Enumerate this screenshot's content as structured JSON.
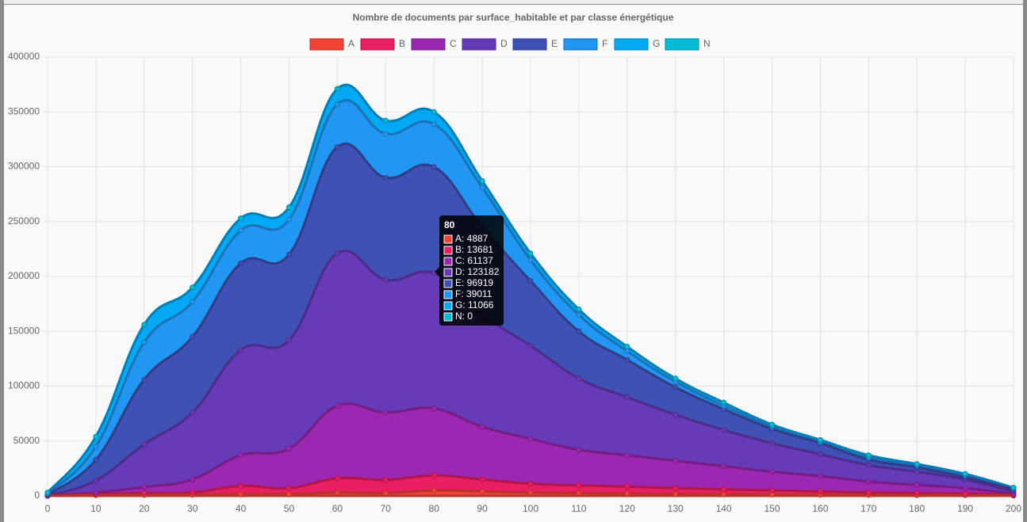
{
  "chart_data": {
    "type": "stacked-area",
    "title": "Nombre de documents par surface_habitable et par classe énergétique",
    "x": [
      0,
      10,
      20,
      30,
      40,
      50,
      60,
      70,
      80,
      90,
      100,
      110,
      120,
      130,
      140,
      150,
      160,
      170,
      180,
      190,
      200
    ],
    "xlim": [
      0,
      200
    ],
    "xticks": [
      0,
      10,
      20,
      30,
      40,
      50,
      60,
      70,
      80,
      90,
      100,
      110,
      120,
      130,
      140,
      150,
      160,
      170,
      180,
      190,
      200
    ],
    "ylim": [
      0,
      400000
    ],
    "yticks": [
      0,
      50000,
      100000,
      150000,
      200000,
      250000,
      300000,
      350000,
      400000
    ],
    "grid": true,
    "legend": "top",
    "series": [
      {
        "name": "A",
        "color": "#f44336",
        "values": [
          0,
          500,
          800,
          1000,
          1500,
          1500,
          3000,
          2500,
          4887,
          4000,
          3000,
          2500,
          2000,
          1500,
          1500,
          1200,
          1000,
          800,
          600,
          500,
          200
        ]
      },
      {
        "name": "B",
        "color": "#e91e63",
        "values": [
          0,
          1000,
          1700,
          2000,
          7500,
          5500,
          13000,
          12000,
          13681,
          11000,
          8000,
          7000,
          6500,
          5500,
          4500,
          3800,
          3000,
          2200,
          1900,
          1500,
          600
        ]
      },
      {
        "name": "C",
        "color": "#9c27b0",
        "values": [
          0,
          1500,
          5500,
          12000,
          28000,
          36000,
          66000,
          61500,
          61137,
          48000,
          41000,
          32500,
          28500,
          25000,
          21000,
          17000,
          14000,
          10000,
          7500,
          5000,
          1200
        ]
      },
      {
        "name": "D",
        "color": "#673ab7",
        "values": [
          0,
          11000,
          39000,
          61000,
          96000,
          99000,
          139000,
          121000,
          123182,
          102000,
          85000,
          65000,
          53000,
          42000,
          33000,
          26000,
          20000,
          15000,
          12000,
          8000,
          2000
        ]
      },
      {
        "name": "E",
        "color": "#3f51b5",
        "values": [
          1000,
          19000,
          59000,
          69000,
          79000,
          78000,
          97000,
          93000,
          96919,
          80000,
          59000,
          43000,
          34000,
          25000,
          19000,
          13000,
          10000,
          5000,
          4000,
          2000,
          2000
        ]
      },
      {
        "name": "F",
        "color": "#2196f3",
        "values": [
          1000,
          12000,
          34000,
          32000,
          30000,
          32000,
          39000,
          40000,
          39011,
          36000,
          19000,
          15000,
          8000,
          5000,
          3000,
          2000,
          1000,
          2000,
          2000,
          2000,
          1000
        ]
      },
      {
        "name": "G",
        "color": "#03a9f4",
        "values": [
          1000,
          9000,
          16000,
          13000,
          11000,
          11000,
          14000,
          12000,
          11066,
          6000,
          6000,
          5000,
          4000,
          3000,
          3000,
          2000,
          2000,
          2000,
          1000,
          1000,
          500
        ]
      },
      {
        "name": "N",
        "color": "#00bcd4",
        "values": [
          0,
          0,
          0,
          0,
          0,
          0,
          0,
          0,
          0,
          0,
          0,
          0,
          0,
          0,
          0,
          0,
          0,
          0,
          0,
          0,
          0
        ]
      }
    ],
    "tooltip": {
      "title": "80",
      "lines": [
        "A: 4887",
        "B: 13681",
        "C: 61137",
        "D: 123182",
        "E: 96919",
        "F: 39011",
        "G: 11066",
        "N: 0"
      ]
    }
  }
}
